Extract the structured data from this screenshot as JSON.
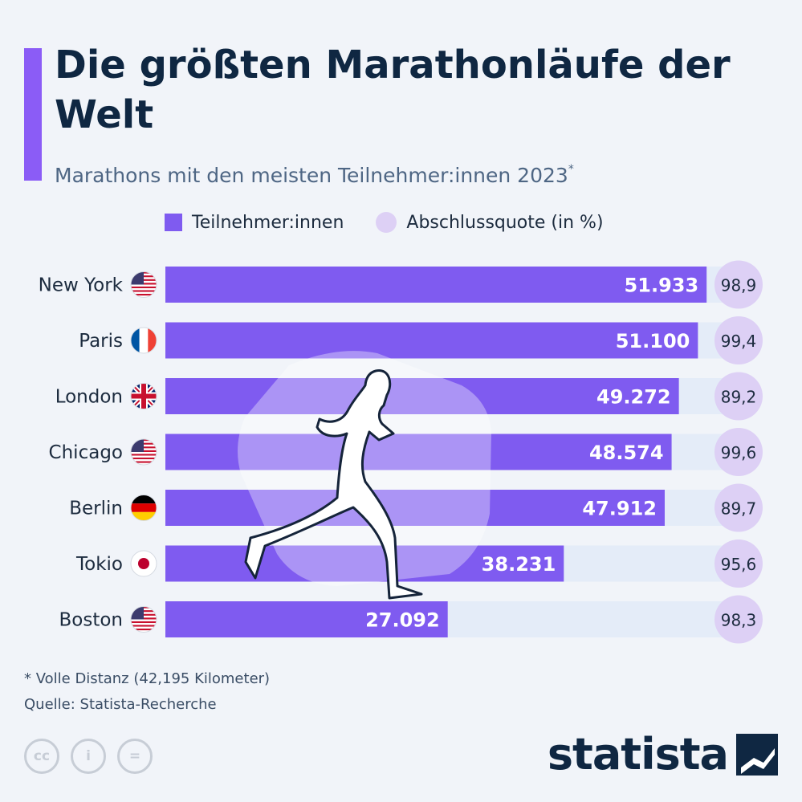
{
  "title": "Die größten Marathonläufe der Welt",
  "subtitle": "Marathons mit den meisten Teilnehmer:innen 2023",
  "subtitle_mark": "*",
  "legend": {
    "bar_label": "Teilnehmer:innen",
    "dot_label": "Abschlussquote (in %)"
  },
  "colors": {
    "bar": "#7f5bf0",
    "track": "#e4ecf8",
    "dot": "#ddd0f5",
    "accent": "#8b5cf6",
    "title": "#0f2742"
  },
  "chart_data": {
    "type": "bar",
    "orientation": "horizontal",
    "categories": [
      "New York",
      "Paris",
      "London",
      "Chicago",
      "Berlin",
      "Tokio",
      "Boston"
    ],
    "flags": [
      "us-flag-icon",
      "fr-flag-icon",
      "gb-flag-icon",
      "us-flag-icon",
      "de-flag-icon",
      "jp-flag-icon",
      "us-flag-icon"
    ],
    "series": [
      {
        "values": [
          51933,
          51100,
          49272,
          48574,
          47912,
          38231,
          27092
        ]
      },
      {
        "values": [
          98.9,
          99.4,
          89.2,
          99.6,
          89.7,
          95.6,
          98.3
        ]
      }
    ],
    "value_labels": [
      "51.933",
      "51.100",
      "49.272",
      "48.574",
      "47.912",
      "38.231",
      "27.092"
    ],
    "rate_labels": [
      "98,9",
      "99,4",
      "89,2",
      "99,6",
      "89,7",
      "95,6",
      "98,3"
    ],
    "xlim": [
      0,
      55000
    ],
    "legend_position": "top"
  },
  "footnote": "* Volle Distanz (42,195 Kilometer)",
  "source": "Quelle: Statista-Recherche",
  "license_icons": [
    "cc",
    "i",
    "="
  ],
  "brand": "statista"
}
